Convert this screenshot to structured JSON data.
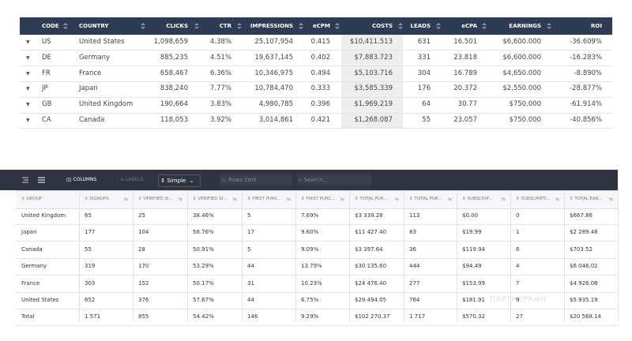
{
  "table1": {
    "headers": [
      "CODE",
      "COUNTRY",
      "CLICKS",
      "CTR",
      "IMPRESSIONS",
      "eCPM",
      "COSTS",
      "LEADS",
      "eCPA",
      "EARNINGS",
      "ROI"
    ],
    "rows": [
      [
        "US",
        "United States",
        "1,098,659",
        "4.38%",
        "25,107,954",
        "0.415",
        "$10,411.513",
        "631",
        "16.501",
        "$6,600.000",
        "-36.609%"
      ],
      [
        "DE",
        "Germany",
        "885,235",
        "4.51%",
        "19,637,145",
        "0.402",
        "$7,883.723",
        "331",
        "23.818",
        "$6,600.000",
        "-16.283%"
      ],
      [
        "FR",
        "France",
        "658,467",
        "6.36%",
        "10,346,975",
        "0.494",
        "$5,103.716",
        "304",
        "16.789",
        "$4,650.000",
        "-8.890%"
      ],
      [
        "JP",
        "Japan",
        "838,240",
        "7.77%",
        "10,784,470",
        "0.333",
        "$3,585.339",
        "176",
        "20.372",
        "$2,550.000",
        "-28.877%"
      ],
      [
        "GB",
        "United Kingdom",
        "190,664",
        "3.83%",
        "4,980,785",
        "0.396",
        "$1,969.219",
        "64",
        "30.77",
        "$750.000",
        "-61.914%"
      ],
      [
        "CA",
        "Canada",
        "118,053",
        "3.92%",
        "3,014,861",
        "0.421",
        "$1,268.087",
        "55",
        "23.057",
        "$750.000",
        "-40.856%"
      ]
    ]
  },
  "table2": {
    "toolbar": {
      "columns": "COLUMNS",
      "labels": "LABELS",
      "mode": "Simple",
      "rows_limit": "Rows limit",
      "search": "Search..."
    },
    "headers": [
      "GROUP",
      "SIGNUPS",
      "VERIFIED SI...",
      "VERIFIED SI...",
      "FIRST PURC...",
      "FIRST PURC...",
      "TOTAL PUR...",
      "TOTAL PUR...",
      "SUBSCRIP...",
      "SUBSCRIPTI...",
      "TOTAL EAR..."
    ],
    "rows": [
      [
        "United Kingdom",
        "65",
        "25",
        "38.46%",
        "5",
        "7.69%",
        "$3 339.28",
        "113",
        "$0.00",
        "0",
        "$667.86"
      ],
      [
        "Japan",
        "177",
        "104",
        "58.76%",
        "17",
        "9.60%",
        "$11 427.40",
        "83",
        "$19.99",
        "1",
        "$2 289.48"
      ],
      [
        "Canada",
        "55",
        "28",
        "50.91%",
        "5",
        "9.09%",
        "$3 397.64",
        "36",
        "$119.94",
        "6",
        "$703.52"
      ],
      [
        "Germany",
        "319",
        "170",
        "53.29%",
        "44",
        "13.79%",
        "$30 135.60",
        "444",
        "$94.49",
        "4",
        "$6 046.02"
      ],
      [
        "France",
        "303",
        "152",
        "50.17%",
        "31",
        "10.23%",
        "$24 476.40",
        "277",
        "$153.99",
        "7",
        "$4 926.08"
      ],
      [
        "United States",
        "652",
        "376",
        "57.67%",
        "44",
        "6.75%",
        "$29 494.05",
        "764",
        "$181.91",
        "9",
        "$5 935.19"
      ],
      [
        "Total",
        "1 571",
        "855",
        "54.42%",
        "146",
        "9.29%",
        "$102 270.37",
        "1 717",
        "$570.32",
        "27",
        "$20 568.14"
      ]
    ]
  },
  "watermark": "ПАРТНЕРКИН"
}
